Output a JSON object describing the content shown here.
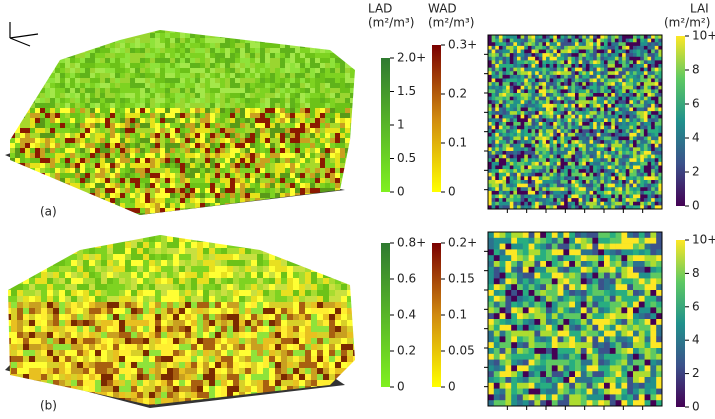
{
  "panels": [
    {
      "label": "(a)",
      "colorbars": [
        {
          "title": "LAD",
          "unit": "(m²/m³)",
          "lim": [
            0,
            2
          ],
          "ticks": [
            0,
            0.5,
            1,
            1.5,
            {
              "value": 2,
              "label": "2.0+"
            }
          ]
        },
        {
          "title": "WAD",
          "unit": "(m²/m³)",
          "lim": [
            0,
            0.3
          ],
          "ticks": [
            0,
            0.1,
            0.2,
            {
              "value": 0.3,
              "label": "0.3+"
            }
          ]
        },
        {
          "title": "LAI",
          "unit": "(m²/m²)",
          "lim": [
            0,
            10
          ],
          "ticks": [
            0,
            2,
            4,
            6,
            8,
            {
              "value": 10,
              "label": "10+"
            }
          ]
        }
      ]
    },
    {
      "label": "(b)",
      "colorbars": [
        {
          "lim": [
            0,
            0.8
          ],
          "ticks": [
            0,
            0.2,
            0.4,
            0.6,
            {
              "value": 0.8,
              "label": "0.8+"
            }
          ]
        },
        {
          "lim": [
            0,
            0.2
          ],
          "ticks": [
            0,
            0.05,
            0.1,
            0.15,
            {
              "value": 0.2,
              "label": "0.2+"
            }
          ]
        },
        {
          "lim": [
            0,
            10
          ],
          "ticks": [
            0,
            2,
            4,
            6,
            8,
            {
              "value": 10,
              "label": "10+"
            }
          ]
        }
      ]
    }
  ]
}
